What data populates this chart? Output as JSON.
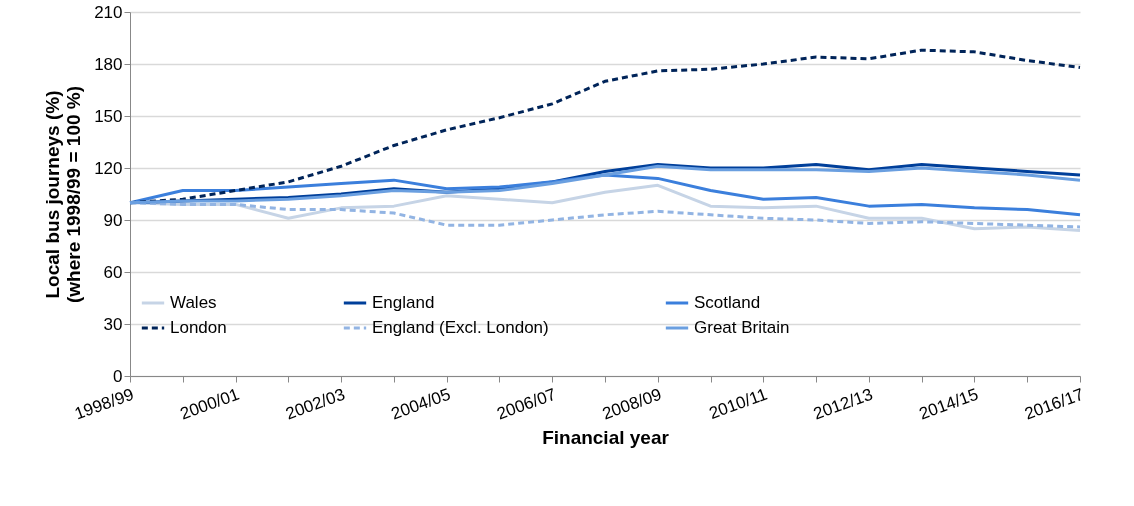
{
  "chart_data": {
    "type": "line",
    "xlabel": "Financial year",
    "ylabel": "Local bus journeys (%)\n(where 1998/99 = 100 %)",
    "categories": [
      "1998/99",
      null,
      "2000/01",
      null,
      "2002/03",
      null,
      "2004/05",
      null,
      "2006/07",
      null,
      "2008/09",
      null,
      "2010/11",
      null,
      "2012/13",
      null,
      "2014/15",
      null,
      "2016/17"
    ],
    "series": [
      {
        "name": "Wales",
        "color": "#c6d4e6",
        "line_style": "solid",
        "values": [
          100,
          99,
          99,
          91,
          97,
          98,
          104,
          102,
          100,
          106,
          110,
          98,
          97,
          98,
          91,
          91,
          85,
          86,
          84
        ]
      },
      {
        "name": "England",
        "color": "#003f9a",
        "line_style": "solid",
        "values": [
          100,
          101,
          102,
          103,
          105,
          108,
          106,
          108,
          112,
          118,
          122,
          120,
          120,
          122,
          119,
          122,
          120,
          118,
          116
        ]
      },
      {
        "name": "Scotland",
        "color": "#3b7fdc",
        "line_style": "solid",
        "values": [
          100,
          107,
          107,
          109,
          111,
          113,
          108,
          109,
          112,
          116,
          114,
          107,
          102,
          103,
          98,
          99,
          97,
          96,
          93
        ]
      },
      {
        "name": "London",
        "color": "#002459",
        "line_style": "dashed",
        "values": [
          100,
          102,
          107,
          112,
          121,
          133,
          142,
          149,
          157,
          170,
          176,
          177,
          180,
          184,
          183,
          188,
          187,
          182,
          178
        ]
      },
      {
        "name": "England (Excl. London)",
        "color": "#92b4e3",
        "line_style": "dashed",
        "values": [
          100,
          99,
          99,
          96,
          96,
          94,
          87,
          87,
          90,
          93,
          95,
          93,
          91,
          90,
          88,
          89,
          88,
          87,
          86
        ]
      },
      {
        "name": "Great Britain",
        "color": "#6a9fe0",
        "line_style": "solid",
        "values": [
          100,
          101,
          101,
          102,
          104,
          107,
          106,
          107,
          111,
          116,
          121,
          119,
          119,
          119,
          118,
          120,
          118,
          116,
          113
        ]
      }
    ],
    "ylim": [
      0,
      210
    ],
    "yticks": [
      0,
      30,
      60,
      90,
      120,
      150,
      180,
      210
    ],
    "grid": "y",
    "legend": "bottom",
    "marker": "none"
  }
}
